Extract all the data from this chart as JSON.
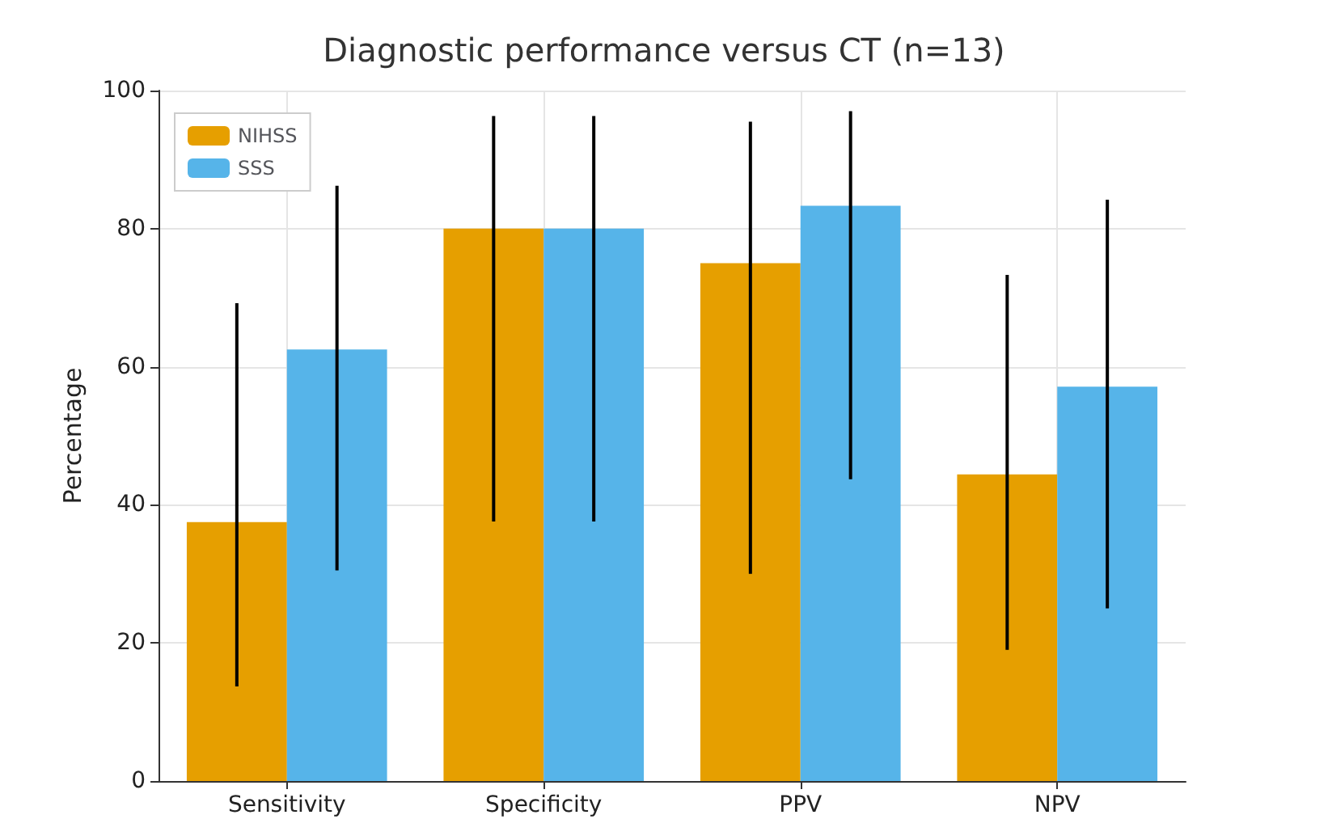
{
  "chart_data": {
    "type": "bar",
    "title": "Diagnostic performance versus CT (n=13)",
    "ylabel": "Percentage",
    "categories": [
      "Sensitivity",
      "Specificity",
      "PPV",
      "NPV"
    ],
    "series": [
      {
        "name": "NIHSS",
        "color": "#e69f00",
        "values": [
          37.5,
          80,
          75,
          44.4
        ],
        "errors": [
          [
            13.7,
            69.2
          ],
          [
            37.6,
            96.3
          ],
          [
            30,
            95.5
          ],
          [
            19,
            73.3
          ]
        ]
      },
      {
        "name": "SSS",
        "color": "#56b4e9",
        "values": [
          62.5,
          80,
          83.3,
          57.1
        ],
        "errors": [
          [
            30.5,
            86.2
          ],
          [
            37.6,
            96.3
          ],
          [
            43.7,
            97
          ],
          [
            25,
            84.2
          ]
        ]
      }
    ],
    "ylim": [
      0,
      100
    ],
    "yticks": [
      0,
      20,
      40,
      60,
      80,
      100
    ],
    "grid": true,
    "legend": "top left"
  }
}
